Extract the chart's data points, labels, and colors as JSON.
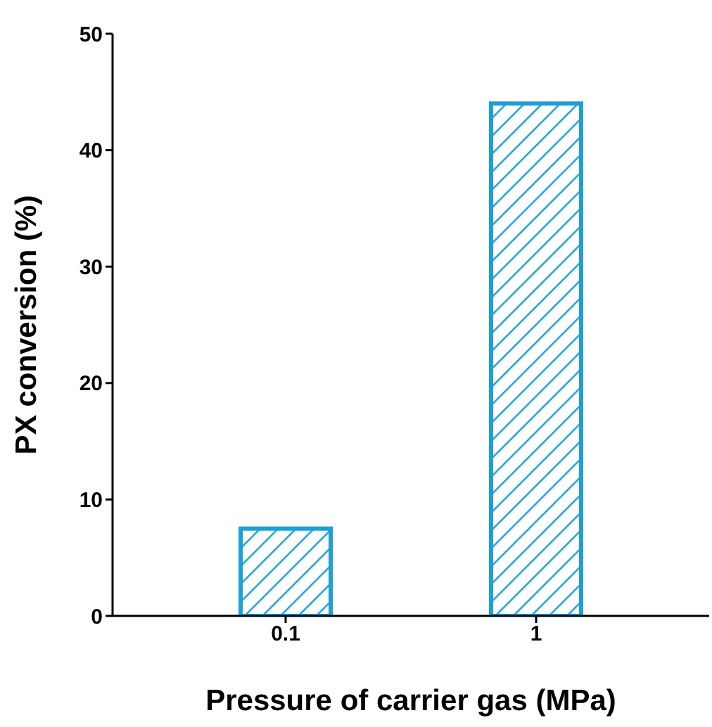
{
  "chart_data": {
    "type": "bar",
    "xlabel": "Pressure of carrier gas (MPa)",
    "ylabel": "PX conversion (%)",
    "categories": [
      "0.1",
      "1"
    ],
    "values": [
      7.5,
      44
    ],
    "color": "#1e9fd6",
    "ylim": [
      0,
      50
    ],
    "yticks": [
      0,
      10,
      20,
      30,
      40,
      50
    ],
    "grid": false,
    "legend": false
  }
}
